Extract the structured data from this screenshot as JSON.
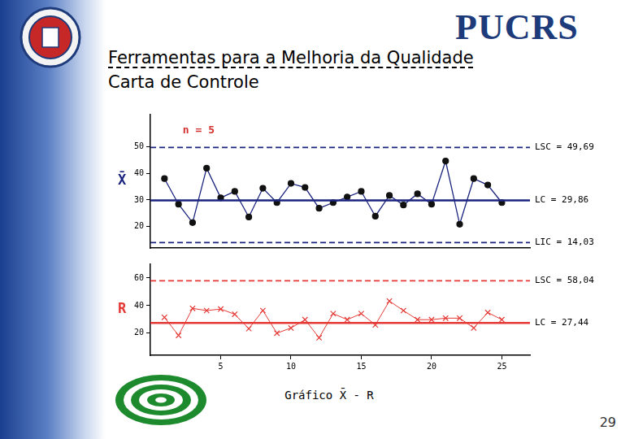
{
  "slide": {
    "logo_text": "PUCRS",
    "title": "Ferramentas para a Melhoria da Qualidade",
    "subtitle": "Carta de Controle",
    "caption": "Gráfico X̄ - R",
    "page": "29"
  },
  "chart_data": [
    {
      "type": "line",
      "y_label": "X̄",
      "annotations": [
        {
          "text": "n = 5",
          "x": 2.3,
          "y": 56
        }
      ],
      "x": [
        1,
        2,
        3,
        4,
        5,
        6,
        7,
        8,
        9,
        10,
        11,
        12,
        13,
        14,
        15,
        16,
        17,
        18,
        19,
        20,
        21,
        22,
        23,
        24,
        25
      ],
      "values": [
        38,
        28.4,
        21.5,
        41.9,
        30.8,
        33.2,
        23.6,
        34.4,
        29,
        36.2,
        34.7,
        26.9,
        29,
        31.1,
        33.2,
        23.9,
        31.7,
        28.1,
        32.3,
        28.4,
        44.6,
        20.9,
        38,
        35.6,
        29
      ],
      "color": "#1a237e",
      "marker": "circle",
      "control_limits": [
        {
          "label": "LSC = 49,69",
          "value": 49.69,
          "line_style": "dashed",
          "color": "#1a237e"
        },
        {
          "label": "LC = 29,86",
          "value": 29.86,
          "line_style": "solid",
          "color": "#1a237e"
        },
        {
          "label": "LIC = 14,03",
          "value": 14.03,
          "line_style": "dashed",
          "color": "#1a237e"
        }
      ],
      "xlim": [
        0,
        27
      ],
      "ylim": [
        12,
        62
      ],
      "yticks": [
        20,
        30,
        40,
        50
      ],
      "grid": false,
      "tick_labels": "y"
    },
    {
      "type": "line",
      "y_label": "R",
      "x": [
        1,
        2,
        3,
        4,
        5,
        6,
        7,
        8,
        9,
        10,
        11,
        12,
        13,
        14,
        15,
        16,
        17,
        18,
        19,
        20,
        21,
        22,
        23,
        24,
        25
      ],
      "values": [
        31.5,
        18.4,
        38,
        36.4,
        37.5,
        33.7,
        23.3,
        36.4,
        20,
        23.8,
        29.8,
        16.7,
        34.2,
        29.8,
        34.2,
        26,
        43.3,
        36.4,
        29.8,
        29.8,
        30.9,
        30.9,
        23.8,
        35,
        29.8
      ],
      "color": "#e53935",
      "marker": "x",
      "control_limits": [
        {
          "label": "LSC = 58,04",
          "value": 58.04,
          "line_style": "dashed",
          "color": "#e53935"
        },
        {
          "label": "LC = 27,44",
          "value": 27.44,
          "line_style": "solid",
          "color": "#e53935"
        }
      ],
      "xlim": [
        0,
        27
      ],
      "xticks": [
        5,
        10,
        15,
        20,
        25
      ],
      "ylim": [
        4,
        70
      ],
      "yticks": [
        20,
        40,
        60
      ],
      "grid": false
    }
  ]
}
